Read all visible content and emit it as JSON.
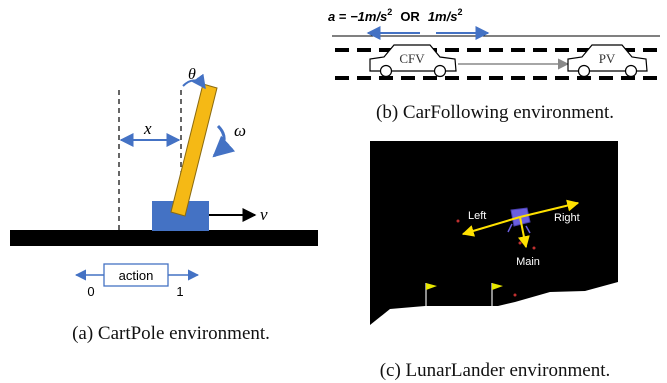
{
  "colors": {
    "accent_blue": "#4472c4",
    "pole_yellow": "#f5b915",
    "pole_outline": "#8a6a10",
    "lander_purple": "#6b5fe0",
    "arrow_yellow": "#ffe100",
    "flag_yellow": "#e8e800",
    "flag_pole": "#bcbcbc",
    "space_black": "#000000",
    "moon_white": "#ffffff",
    "star_red": "#c03030"
  },
  "cartpole": {
    "theta_label": "θ",
    "omega_label": "ω",
    "x_label": "x",
    "v_label": "v",
    "action_label": "action",
    "action_left_value": "0",
    "action_right_value": "1",
    "caption": "(a) CartPole environment."
  },
  "carfollowing": {
    "accel_a": "a",
    "accel_eq": " = ",
    "accel_neg": "−1m/s",
    "accel_sq1": "2",
    "accel_or": "OR",
    "accel_pos": "1m/s",
    "accel_sq2": "2",
    "cfv_label": "CFV",
    "pv_label": "PV",
    "caption": "(b) CarFollowing environment."
  },
  "lunarlander": {
    "left_label": "Left",
    "right_label": "Right",
    "main_label": "Main",
    "caption": "(c) LunarLander environment."
  }
}
